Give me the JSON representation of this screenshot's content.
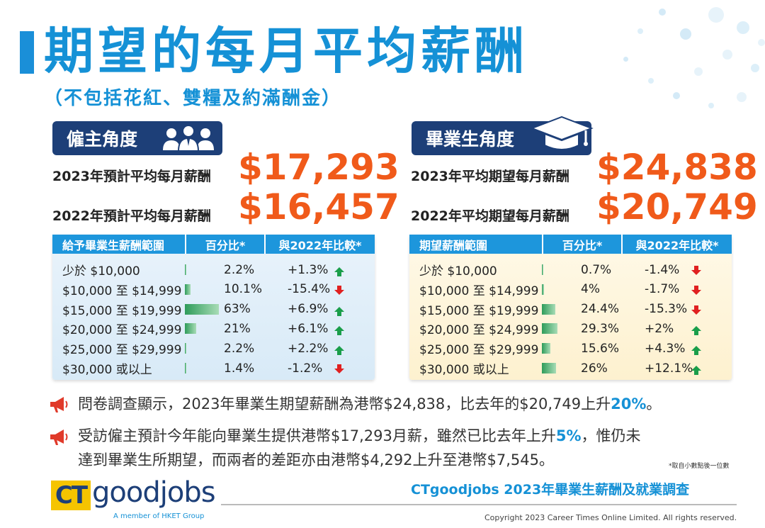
{
  "header": {
    "title": "期望的每月平均薪酬",
    "subtitle": "（不包括花紅、雙糧及約滿酬金）"
  },
  "employer": {
    "tag": "僱主角度",
    "stat_2023_label": "2023年預計平均每月薪酬",
    "stat_2023_value": "$17,293",
    "stat_2022_label": "2022年預計平均每月薪酬",
    "stat_2022_value": "$16,457",
    "table": {
      "col1": "給予畢業生薪酬範圍",
      "col2": "百分比*",
      "col3": "與2022年比較*",
      "rows": [
        {
          "range": "少於 $10,000",
          "pct": "2.2%",
          "pct_value": 2.2,
          "change": "+1.3%",
          "dir": "up"
        },
        {
          "range": "$10,000 至 $14,999",
          "pct": "10.1%",
          "pct_value": 10.1,
          "change": "-15.4%",
          "dir": "down"
        },
        {
          "range": "$15,000 至 $19,999",
          "pct": "63%",
          "pct_value": 63,
          "change": "+6.9%",
          "dir": "up"
        },
        {
          "range": "$20,000 至 $24,999",
          "pct": "21%",
          "pct_value": 21,
          "change": "+6.1%",
          "dir": "up"
        },
        {
          "range": "$25,000 至 $29,999",
          "pct": "2.2%",
          "pct_value": 2.2,
          "change": "+2.2%",
          "dir": "up"
        },
        {
          "range": "$30,000 或以上",
          "pct": "1.4%",
          "pct_value": 1.4,
          "change": "-1.2%",
          "dir": "down"
        }
      ]
    }
  },
  "graduate": {
    "tag": "畢業生角度",
    "stat_2023_label": "2023年平均期望每月薪酬",
    "stat_2023_value": "$24,838",
    "stat_2022_label": "2022年平均期望每月薪酬",
    "stat_2022_value": "$20,749",
    "table": {
      "col1": "期望薪酬範圍",
      "col2": "百分比*",
      "col3": "與2022年比較*",
      "rows": [
        {
          "range": "少於 $10,000",
          "pct": "0.7%",
          "pct_value": 0.7,
          "change": "-1.4%",
          "dir": "down"
        },
        {
          "range": "$10,000 至 $14,999",
          "pct": "4%",
          "pct_value": 4,
          "change": "-1.7%",
          "dir": "down"
        },
        {
          "range": "$15,000 至 $19,999",
          "pct": "24.4%",
          "pct_value": 24.4,
          "change": "-15.3%",
          "dir": "down"
        },
        {
          "range": "$20,000 至 $24,999",
          "pct": "29.3%",
          "pct_value": 29.3,
          "change": "+2%",
          "dir": "up"
        },
        {
          "range": "$25,000 至 $29,999",
          "pct": "15.6%",
          "pct_value": 15.6,
          "change": "+4.3%",
          "dir": "up"
        },
        {
          "range": "$30,000 或以上",
          "pct": "26%",
          "pct_value": 26,
          "change": "+12.1%",
          "dir": "up"
        }
      ]
    }
  },
  "notes": {
    "note1_pre": "問卷調查顯示，2023年畢業生期望薪酬為港幣$24,838，比去年的$20,749上升",
    "note1_hl": "20%",
    "note1_post": "。",
    "note2_pre": "受訪僱主預計今年能向畢業生提供港幣$17,293月薪，雖然已比去年上升",
    "note2_hl": "5%",
    "note2_post": "，惟仍未",
    "note2_line2": "達到畢業生所期望，而兩者的差距亦由港幣$4,292上升至港幣$7,545。",
    "footnote": "*取自小數點後一位數"
  },
  "footer": {
    "logo_ct": "CT",
    "logo_goodjobs": "goodjobs",
    "logo_member": "A member of HKET Group",
    "survey_name": "CTgoodjobs 2023年畢業生薪酬及就業調查",
    "copyright": "Copyright 2023 Career Times Online Limited. All rights reserved."
  },
  "colors": {
    "accent_blue": "#1591d6",
    "navy": "#1d3f78",
    "orange": "#f05a1a",
    "up_green": "#1a9e4a",
    "down_red": "#e02020"
  }
}
